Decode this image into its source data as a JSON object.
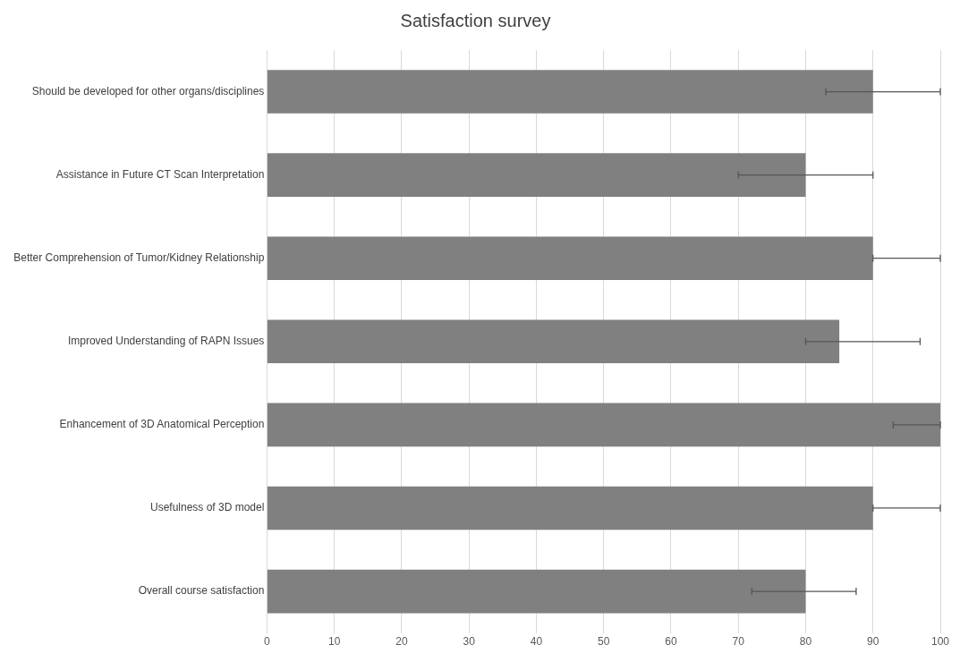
{
  "chart_data": {
    "type": "bar",
    "title": "Satisfaction survey",
    "orientation": "horizontal",
    "categories": [
      "Should be developed for other organs/disciplines",
      "Assistance in Future CT Scan Interpretation",
      "Better Comprehension of Tumor/Kidney Relationship",
      "Improved Understanding of RAPN Issues",
      "Enhancement of 3D Anatomical Perception",
      "Usefulness of 3D model",
      "Overall course satisfaction"
    ],
    "values": [
      90,
      80,
      90,
      85,
      100,
      90,
      80
    ],
    "errors": [
      [
        83,
        100
      ],
      [
        70,
        90
      ],
      [
        90,
        100
      ],
      [
        80,
        97
      ],
      [
        93,
        100
      ],
      [
        90,
        100
      ],
      [
        72,
        87.5
      ]
    ],
    "color": "#808080",
    "xlim": [
      0,
      100
    ],
    "xticks": [
      0,
      10,
      20,
      30,
      40,
      50,
      60,
      70,
      80,
      90,
      100
    ],
    "grid": "x",
    "legend": false
  }
}
